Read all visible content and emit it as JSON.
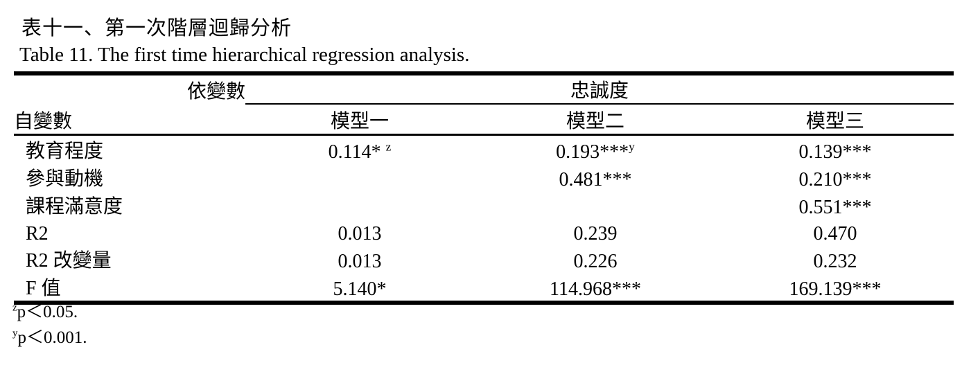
{
  "page": {
    "title_zh": "表十一、第一次階層迴歸分析",
    "title_en": "Table 11. The first time hierarchical regression analysis."
  },
  "table": {
    "header": {
      "dependent_label": "依變數",
      "dependent_value": "忠誠度",
      "independent_label": "自變數",
      "models": [
        "模型一",
        "模型二",
        "模型三"
      ]
    },
    "rows": [
      {
        "label": "教育程度",
        "values": [
          "0.114* ^z",
          "0.193***^y",
          "0.139***"
        ]
      },
      {
        "label": "參與動機",
        "values": [
          "",
          "0.481***",
          "0.210***"
        ]
      },
      {
        "label": "課程滿意度",
        "values": [
          "",
          "",
          "0.551***"
        ]
      },
      {
        "label": "R2",
        "values": [
          "0.013",
          "0.239",
          "0.470"
        ]
      },
      {
        "label": "R2 改變量",
        "values": [
          "0.013",
          "0.226",
          "0.232"
        ]
      },
      {
        "label": "F 值",
        "values": [
          "5.140*",
          "114.968***",
          "169.139***"
        ]
      }
    ]
  },
  "footnotes": [
    {
      "sup": "z",
      "text": "p＜0.05."
    },
    {
      "sup": "y",
      "text": "p＜0.001."
    }
  ],
  "colors": {
    "text": "#000000",
    "rule": "#000000",
    "background": "#ffffff"
  }
}
